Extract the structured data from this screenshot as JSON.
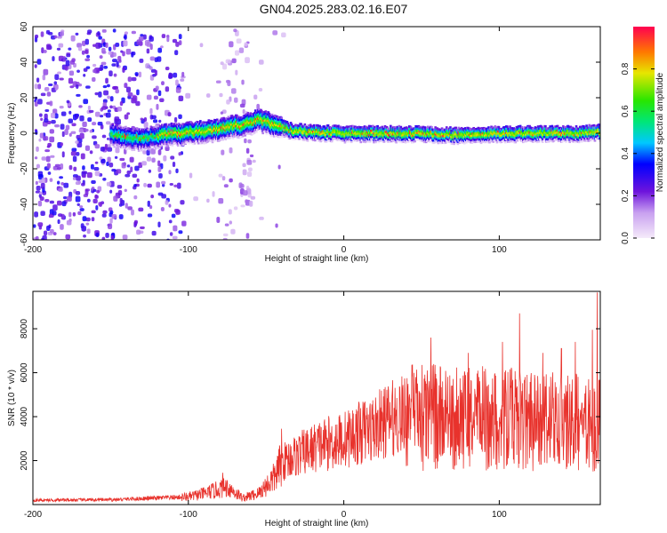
{
  "title": "GN04.2025.283.02.16.E07",
  "chart_data": [
    {
      "type": "heatmap",
      "title": "GN04.2025.283.02.16.E07",
      "xlabel": "Height of straight line (km)",
      "ylabel": "Frequency (Hz)",
      "xlim": [
        -200,
        165
      ],
      "ylim": [
        -60,
        60
      ],
      "xticks": [
        -200,
        -100,
        0,
        100
      ],
      "yticks": [
        -60,
        -40,
        -20,
        0,
        20,
        40,
        60
      ],
      "ridge_x": [
        -200,
        -150,
        -135,
        -125,
        -110,
        -95,
        -85,
        -75,
        -65,
        -55,
        -45,
        -35,
        -25,
        0,
        25,
        50,
        75,
        100,
        125,
        150,
        165
      ],
      "ridge_y": [
        0,
        0,
        -3,
        -2,
        0,
        1,
        2,
        4,
        5,
        8,
        5,
        2,
        1,
        0,
        0,
        0,
        -1,
        0,
        0,
        0,
        1
      ],
      "colorbar": {
        "label": "Normalized spectral amplitude",
        "range": [
          0,
          1
        ],
        "ticks": [
          0.0,
          0.2,
          0.4,
          0.6,
          0.8
        ]
      }
    },
    {
      "type": "line",
      "xlabel": "Height of straight line (km)",
      "ylabel": "SNR (10 * v/v)",
      "xlim": [
        -200,
        165
      ],
      "ylim": [
        0,
        9700
      ],
      "xticks": [
        -200,
        -100,
        0,
        100
      ],
      "yticks": [
        2000,
        4000,
        6000,
        8000
      ],
      "color": "#e8322c",
      "trend_x": [
        -200,
        -150,
        -100,
        -90,
        -80,
        -75,
        -65,
        -55,
        -45,
        -40,
        -35,
        -25,
        -15,
        0,
        10,
        20,
        30,
        40,
        50,
        60,
        80,
        100,
        120,
        140,
        160,
        165
      ],
      "trend_y": [
        200,
        220,
        350,
        500,
        700,
        800,
        300,
        500,
        1200,
        1900,
        2100,
        2400,
        2700,
        2950,
        3250,
        3500,
        3900,
        4100,
        4050,
        4000,
        3900,
        3850,
        3800,
        3750,
        3700,
        3600
      ],
      "peaks_x": [
        -78,
        -40,
        56,
        80,
        102,
        113,
        128,
        140,
        149,
        160,
        163
      ],
      "peaks_y": [
        1450,
        3450,
        7600,
        6900,
        7400,
        8700,
        6900,
        7100,
        7400,
        7950,
        9650
      ]
    }
  ]
}
